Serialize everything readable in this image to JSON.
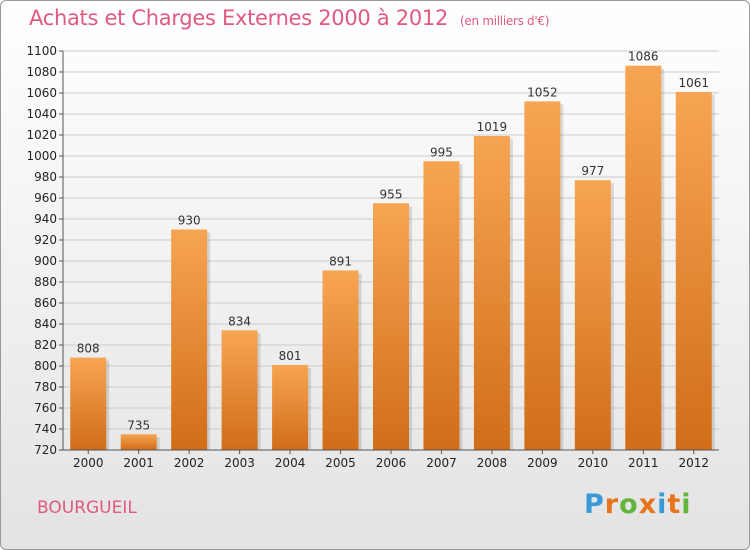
{
  "header": {
    "title": "Achats et Charges Externes 2000 à 2012",
    "unit": "(en milliers d'€)"
  },
  "footer": {
    "location": "BOURGUEIL",
    "logo_text": "Proxiti"
  },
  "colors": {
    "title": "#e05a80",
    "bar_top": "#f7a552",
    "bar_bottom": "#d16d18",
    "gridline": "#cccccc",
    "logo_letters": [
      "#3a9ad9",
      "#e8731c",
      "#63b43a",
      "#e8731c",
      "#3a9ad9",
      "#e8731c",
      "#63b43a"
    ]
  },
  "chart_data": {
    "type": "bar",
    "title": "Achats et Charges Externes 2000 à 2012",
    "subtitle": "(en milliers d'€)",
    "xlabel": "",
    "ylabel": "",
    "categories": [
      "2000",
      "2001",
      "2002",
      "2003",
      "2004",
      "2005",
      "2006",
      "2007",
      "2008",
      "2009",
      "2010",
      "2011",
      "2012"
    ],
    "values": [
      808,
      735,
      930,
      834,
      801,
      891,
      955,
      995,
      1019,
      1052,
      977,
      1086,
      1061
    ],
    "ylim": [
      720,
      1100
    ],
    "yticks": [
      720,
      740,
      760,
      780,
      800,
      820,
      840,
      860,
      880,
      900,
      920,
      940,
      960,
      980,
      1000,
      1020,
      1040,
      1060,
      1080,
      1100
    ],
    "grid": true,
    "data_labels": true
  }
}
